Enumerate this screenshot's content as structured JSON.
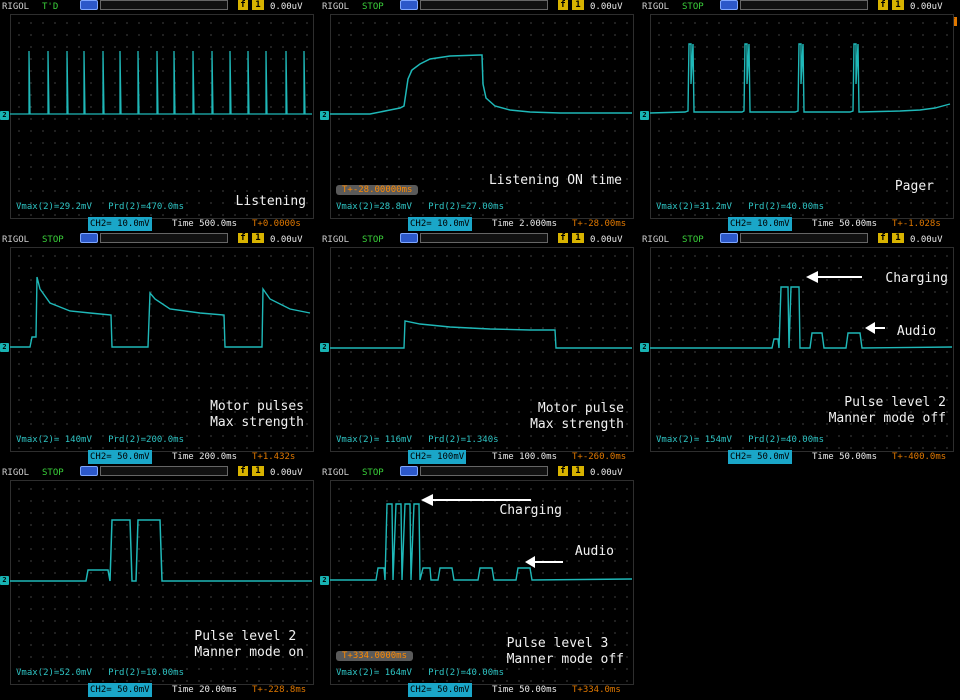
{
  "colors": {
    "trace": "#1fb8b8",
    "status_ok": "#3ad13a",
    "trigger": "#e07800",
    "text": "#f2f2f2",
    "measure": "#2ec4c4"
  },
  "icons": {
    "trigger_slope": "f",
    "trigger_source": "1",
    "channel": "2",
    "trigger_flag": "T"
  },
  "panels": [
    {
      "brand": "RIGOL",
      "status": "T'D",
      "trig_level": "0.00uV",
      "vmax": "Vmax(2)=29.2mV",
      "prd": "Prd(2)=470.0ms",
      "label": "Listening",
      "ch2": "CH2= 10.0mV",
      "time": "Time 500.0ms",
      "offset": "T+0.0000s"
    },
    {
      "brand": "RIGOL",
      "status": "STOP",
      "trig_level": "0.00uV",
      "vmax": "Vmax(2)=28.8mV",
      "prd": "Prd(2)=27.00ms",
      "label": "Listening ON time",
      "ch2": "CH2= 10.0mV",
      "time": "Time 2.000ms",
      "offset": "T+-28.00ms",
      "offset_box": "T+-28.00000ms"
    },
    {
      "brand": "RIGOL",
      "status": "STOP",
      "trig_level": "0.00uV",
      "vmax": "Vmax(2)=31.2mV",
      "prd": "Prd(2)=40.00ms",
      "label": "Pager",
      "ch2": "CH2= 10.0mV",
      "time": "Time 50.00ms",
      "offset": "T+-1.028s"
    },
    {
      "brand": "RIGOL",
      "status": "STOP",
      "trig_level": "0.00uV",
      "vmax": "Vmax(2)= 140mV",
      "prd": "Prd(2)=200.0ms",
      "label": "Motor pulses\nMax strength",
      "ch2": "CH2= 50.0mV",
      "time": "Time 200.0ms",
      "offset": "T+1.432s"
    },
    {
      "brand": "RIGOL",
      "status": "STOP",
      "trig_level": "0.00uV",
      "vmax": "Vmax(2)= 116mV",
      "prd": "Prd(2)=1.340s",
      "label": "Motor pulse\nMax strength",
      "ch2": "CH2= 100mV",
      "time": "Time 100.0ms",
      "offset": "T+-260.0ms"
    },
    {
      "brand": "RIGOL",
      "status": "STOP",
      "trig_level": "0.00uV",
      "vmax": "Vmax(2)= 154mV",
      "prd": "Prd(2)=40.00ms",
      "label": "Pulse level 2\nManner mode off",
      "ch2": "CH2= 50.0mV",
      "time": "Time 50.00ms",
      "offset": "T+-400.0ms",
      "annot1": "Charging",
      "annot2": "Audio"
    },
    {
      "brand": "RIGOL",
      "status": "STOP",
      "trig_level": "0.00uV",
      "vmax": "Vmax(2)=52.0mV",
      "prd": "Prd(2)=10.00ms",
      "label": "Pulse level 2\nManner mode on",
      "ch2": "CH2= 50.0mV",
      "time": "Time 20.00ms",
      "offset": "T+-228.8ms"
    },
    {
      "brand": "RIGOL",
      "status": "STOP",
      "trig_level": "0.00uV",
      "vmax": "Vmax(2)= 164mV",
      "prd": "Prd(2)=40.00ms",
      "label": "Pulse level 3\nManner mode off",
      "ch2": "CH2= 50.0mV",
      "time": "Time 50.00ms",
      "offset": "T+334.0ms",
      "offset_box": "T+334.0000ms",
      "annot1": "Charging",
      "annot2": "Audio"
    }
  ]
}
